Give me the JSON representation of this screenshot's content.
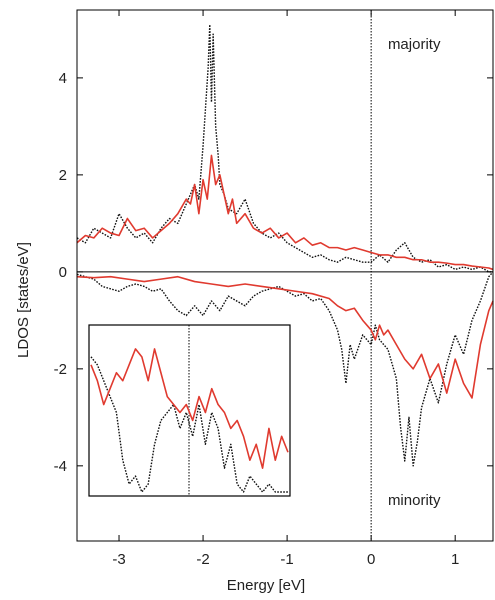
{
  "chart_data": {
    "type": "line",
    "xlabel": "Energy [eV]",
    "ylabel": "LDOS [states/eV]",
    "xlim": [
      -3.5,
      1.45
    ],
    "ylim": [
      -5.55,
      5.4
    ],
    "x_ticks": [
      -3,
      -2,
      -1,
      0,
      1
    ],
    "y_ticks": [
      -4,
      -2,
      0,
      2,
      4
    ],
    "x_tick_labels": [
      "-3",
      "-2",
      "-1",
      "0",
      "1"
    ],
    "y_tick_labels": [
      "-4",
      "-2",
      "0",
      "2",
      "4"
    ],
    "grid": false,
    "fermi_level": 0,
    "annotations": [
      {
        "text": "majority",
        "x": 0.2,
        "y": 4.7
      },
      {
        "text": "minority",
        "x": 0.2,
        "y": -4.7
      }
    ],
    "colors": {
      "solid": "#e03a2f",
      "dotted": "#111111",
      "axis": "#000000"
    },
    "series": [
      {
        "style": "solid",
        "spin": "majority",
        "x": [
          -3.5,
          -3.4,
          -3.3,
          -3.2,
          -3.1,
          -3.0,
          -2.9,
          -2.8,
          -2.7,
          -2.6,
          -2.5,
          -2.4,
          -2.3,
          -2.2,
          -2.15,
          -2.1,
          -2.05,
          -2.0,
          -1.95,
          -1.9,
          -1.85,
          -1.8,
          -1.75,
          -1.7,
          -1.65,
          -1.6,
          -1.5,
          -1.4,
          -1.3,
          -1.2,
          -1.1,
          -1.0,
          -0.9,
          -0.8,
          -0.7,
          -0.6,
          -0.5,
          -0.4,
          -0.3,
          -0.2,
          -0.1,
          0.0,
          0.1,
          0.2,
          0.3,
          0.4,
          0.5,
          0.6,
          0.7,
          0.8,
          0.9,
          1.0,
          1.1,
          1.2,
          1.3,
          1.4,
          1.45
        ],
        "y": [
          0.6,
          0.75,
          0.7,
          0.9,
          0.8,
          0.75,
          1.1,
          0.85,
          0.9,
          0.7,
          0.85,
          1.0,
          1.2,
          1.5,
          1.4,
          1.8,
          1.2,
          1.9,
          1.5,
          2.4,
          1.8,
          2.0,
          1.6,
          1.2,
          1.5,
          1.0,
          1.2,
          0.9,
          0.8,
          0.9,
          0.7,
          0.8,
          0.6,
          0.7,
          0.55,
          0.6,
          0.5,
          0.5,
          0.45,
          0.5,
          0.45,
          0.4,
          0.35,
          0.35,
          0.3,
          0.3,
          0.25,
          0.25,
          0.2,
          0.2,
          0.18,
          0.15,
          0.15,
          0.12,
          0.1,
          0.08,
          0.05
        ]
      },
      {
        "style": "dotted",
        "spin": "majority",
        "x": [
          -3.5,
          -3.4,
          -3.3,
          -3.2,
          -3.1,
          -3.0,
          -2.9,
          -2.8,
          -2.7,
          -2.6,
          -2.5,
          -2.4,
          -2.3,
          -2.2,
          -2.1,
          -2.05,
          -2.0,
          -1.97,
          -1.94,
          -1.92,
          -1.9,
          -1.88,
          -1.85,
          -1.82,
          -1.8,
          -1.75,
          -1.7,
          -1.6,
          -1.5,
          -1.4,
          -1.3,
          -1.2,
          -1.1,
          -1.0,
          -0.9,
          -0.8,
          -0.7,
          -0.6,
          -0.5,
          -0.4,
          -0.3,
          -0.2,
          -0.1,
          0.0,
          0.1,
          0.2,
          0.3,
          0.4,
          0.5,
          0.6,
          0.7,
          0.8,
          0.9,
          1.0,
          1.1,
          1.2,
          1.3,
          1.4,
          1.45
        ],
        "y": [
          0.7,
          0.6,
          0.9,
          0.8,
          0.7,
          1.2,
          0.9,
          0.7,
          0.8,
          0.6,
          0.9,
          1.1,
          1.0,
          1.4,
          1.8,
          1.5,
          2.6,
          3.4,
          4.2,
          5.1,
          3.5,
          4.9,
          3.0,
          2.4,
          1.8,
          1.6,
          1.3,
          1.2,
          1.5,
          1.0,
          0.8,
          0.7,
          0.8,
          0.6,
          0.5,
          0.4,
          0.3,
          0.35,
          0.25,
          0.2,
          0.3,
          0.25,
          0.2,
          0.2,
          0.35,
          0.2,
          0.45,
          0.6,
          0.3,
          0.2,
          0.25,
          0.1,
          0.15,
          0.05,
          0.1,
          0.05,
          0.1,
          0.0,
          0.0
        ]
      },
      {
        "style": "solid",
        "spin": "minority",
        "x": [
          -3.5,
          -3.3,
          -3.1,
          -2.9,
          -2.7,
          -2.5,
          -2.3,
          -2.1,
          -1.9,
          -1.7,
          -1.5,
          -1.3,
          -1.1,
          -0.9,
          -0.7,
          -0.5,
          -0.4,
          -0.3,
          -0.2,
          -0.1,
          0.0,
          0.05,
          0.1,
          0.15,
          0.2,
          0.3,
          0.4,
          0.5,
          0.6,
          0.7,
          0.8,
          0.9,
          1.0,
          1.1,
          1.2,
          1.3,
          1.4,
          1.45
        ],
        "y": [
          -0.1,
          -0.12,
          -0.1,
          -0.15,
          -0.2,
          -0.15,
          -0.1,
          -0.2,
          -0.25,
          -0.3,
          -0.25,
          -0.3,
          -0.35,
          -0.4,
          -0.45,
          -0.55,
          -0.7,
          -0.8,
          -0.75,
          -1.0,
          -1.2,
          -1.4,
          -1.1,
          -1.3,
          -1.2,
          -1.5,
          -1.8,
          -2.0,
          -1.7,
          -2.2,
          -1.9,
          -2.5,
          -1.8,
          -2.3,
          -2.6,
          -1.5,
          -0.8,
          -0.6
        ]
      },
      {
        "style": "dotted",
        "spin": "minority",
        "x": [
          -3.5,
          -3.4,
          -3.3,
          -3.2,
          -3.1,
          -3.0,
          -2.9,
          -2.8,
          -2.7,
          -2.6,
          -2.5,
          -2.4,
          -2.3,
          -2.2,
          -2.1,
          -2.0,
          -1.9,
          -1.8,
          -1.7,
          -1.6,
          -1.5,
          -1.4,
          -1.3,
          -1.2,
          -1.1,
          -1.0,
          -0.9,
          -0.8,
          -0.7,
          -0.6,
          -0.5,
          -0.4,
          -0.35,
          -0.3,
          -0.25,
          -0.2,
          -0.1,
          0.0,
          0.05,
          0.1,
          0.2,
          0.3,
          0.35,
          0.4,
          0.45,
          0.5,
          0.55,
          0.6,
          0.7,
          0.8,
          0.9,
          1.0,
          1.1,
          1.2,
          1.3,
          1.4,
          1.45
        ],
        "y": [
          -0.05,
          -0.1,
          -0.15,
          -0.3,
          -0.35,
          -0.4,
          -0.3,
          -0.25,
          -0.3,
          -0.4,
          -0.35,
          -0.6,
          -0.8,
          -0.9,
          -0.7,
          -0.9,
          -0.6,
          -0.8,
          -0.5,
          -0.6,
          -0.7,
          -0.5,
          -0.4,
          -0.35,
          -0.3,
          -0.4,
          -0.5,
          -0.45,
          -0.6,
          -0.55,
          -0.8,
          -1.2,
          -1.6,
          -2.3,
          -1.5,
          -1.8,
          -1.3,
          -1.5,
          -1.1,
          -1.4,
          -1.6,
          -2.2,
          -3.2,
          -3.9,
          -3.0,
          -4.0,
          -3.5,
          -2.8,
          -2.2,
          -2.7,
          -1.9,
          -1.3,
          -1.7,
          -1.0,
          -0.6,
          -0.1,
          0.0
        ]
      }
    ],
    "inset": {
      "series": [
        {
          "style": "solid",
          "y": [
            0.8,
            0.7,
            0.55,
            0.65,
            0.75,
            0.7,
            0.8,
            0.9,
            0.85,
            0.7,
            0.9,
            0.75,
            0.6,
            0.55,
            0.5,
            0.55,
            0.45,
            0.6,
            0.5,
            0.65,
            0.55,
            0.5,
            0.4,
            0.45,
            0.35,
            0.2,
            0.3,
            0.15,
            0.4,
            0.2,
            0.35,
            0.25
          ]
        },
        {
          "style": "dotted",
          "y": [
            0.85,
            0.8,
            0.7,
            0.6,
            0.5,
            0.2,
            0.05,
            0.1,
            0.0,
            0.05,
            0.3,
            0.45,
            0.5,
            0.55,
            0.4,
            0.5,
            0.35,
            0.55,
            0.3,
            0.5,
            0.4,
            0.15,
            0.3,
            0.05,
            0.0,
            0.1,
            0.05,
            0.0,
            0.05,
            0.0,
            0.0,
            0.0
          ]
        }
      ]
    }
  }
}
